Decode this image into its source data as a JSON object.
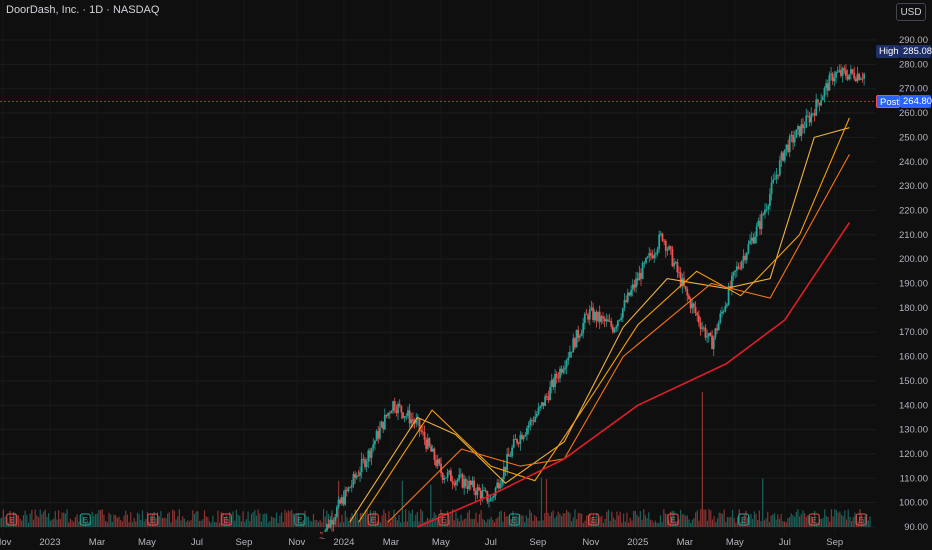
{
  "header": {
    "title": "DoorDash, Inc. · 1D · NASDAQ",
    "currency": "USD"
  },
  "markers": {
    "high_label": "High",
    "high_value": "285.08",
    "post_label": "Post",
    "post_value": "264.80",
    "earnings_letter": "E"
  },
  "colors": {
    "background": "#0f0f0f",
    "up": "#26a69a",
    "down": "#ef5350",
    "ma_fast": "#f0b040",
    "ma_mid": "#f59e0b",
    "ma_slow": "#f97316",
    "ma_long": "#e11d2a",
    "post_line": "#ef5350",
    "high_tag": "#1e2f66",
    "post_tag": "#2962ff"
  },
  "chart_data": {
    "type": "candlestick",
    "ylim": [
      90,
      290
    ],
    "y_ticks": [
      290,
      280,
      270,
      260,
      250,
      240,
      230,
      220,
      210,
      200,
      190,
      180,
      170,
      160,
      150,
      140,
      130,
      120,
      110,
      100,
      90
    ],
    "x_labels": [
      "Nov",
      "2023",
      "Mar",
      "May",
      "Jul",
      "Sep",
      "Nov",
      "2024",
      "Mar",
      "May",
      "Jul",
      "Sep",
      "Nov",
      "2025",
      "Mar",
      "May",
      "Jul",
      "Sep"
    ],
    "price_path_approx": [
      [
        "2023-12",
        85
      ],
      [
        "2024-01",
        102
      ],
      [
        "2024-02",
        120
      ],
      [
        "2024-03",
        141
      ],
      [
        "2024-04",
        132
      ],
      [
        "2024-05",
        112
      ],
      [
        "2024-06",
        108
      ],
      [
        "2024-07",
        101
      ],
      [
        "2024-08",
        125
      ],
      [
        "2024-09",
        138
      ],
      [
        "2024-10",
        158
      ],
      [
        "2024-11",
        178
      ],
      [
        "2024-12",
        172
      ],
      [
        "2025-01",
        192
      ],
      [
        "2025-02",
        210
      ],
      [
        "2025-03",
        185
      ],
      [
        "2025-04",
        165
      ],
      [
        "2025-05",
        195
      ],
      [
        "2025-06",
        215
      ],
      [
        "2025-07",
        245
      ],
      [
        "2025-08",
        258
      ],
      [
        "2025-09",
        276
      ]
    ],
    "moving_averages": [
      {
        "values": [
          [
            2024.02,
            92
          ],
          [
            2024.25,
            135
          ],
          [
            2024.38,
            128
          ],
          [
            2024.55,
            108
          ],
          [
            2024.75,
            125
          ],
          [
            2024.95,
            172
          ],
          [
            2025.1,
            192
          ],
          [
            2025.3,
            188
          ],
          [
            2025.45,
            192
          ],
          [
            2025.6,
            250
          ],
          [
            2025.72,
            254
          ]
        ]
      },
      {
        "values": [
          [
            2024.05,
            92
          ],
          [
            2024.3,
            138
          ],
          [
            2024.5,
            115
          ],
          [
            2024.65,
            109
          ],
          [
            2024.85,
            145
          ],
          [
            2025.0,
            173
          ],
          [
            2025.2,
            195
          ],
          [
            2025.35,
            185
          ],
          [
            2025.55,
            210
          ],
          [
            2025.72,
            258
          ]
        ]
      },
      {
        "values": [
          [
            2024.15,
            92
          ],
          [
            2024.4,
            122
          ],
          [
            2024.6,
            115
          ],
          [
            2024.75,
            118
          ],
          [
            2024.95,
            160
          ],
          [
            2025.25,
            190
          ],
          [
            2025.45,
            184
          ],
          [
            2025.72,
            243
          ]
        ]
      },
      {
        "values": [
          [
            2024.25,
            90
          ],
          [
            2024.5,
            103
          ],
          [
            2024.75,
            118
          ],
          [
            2025.0,
            140
          ],
          [
            2025.3,
            157
          ],
          [
            2025.5,
            175
          ],
          [
            2025.72,
            215
          ]
        ]
      }
    ],
    "post_market_price": 264.8,
    "high_price": 285.08
  }
}
